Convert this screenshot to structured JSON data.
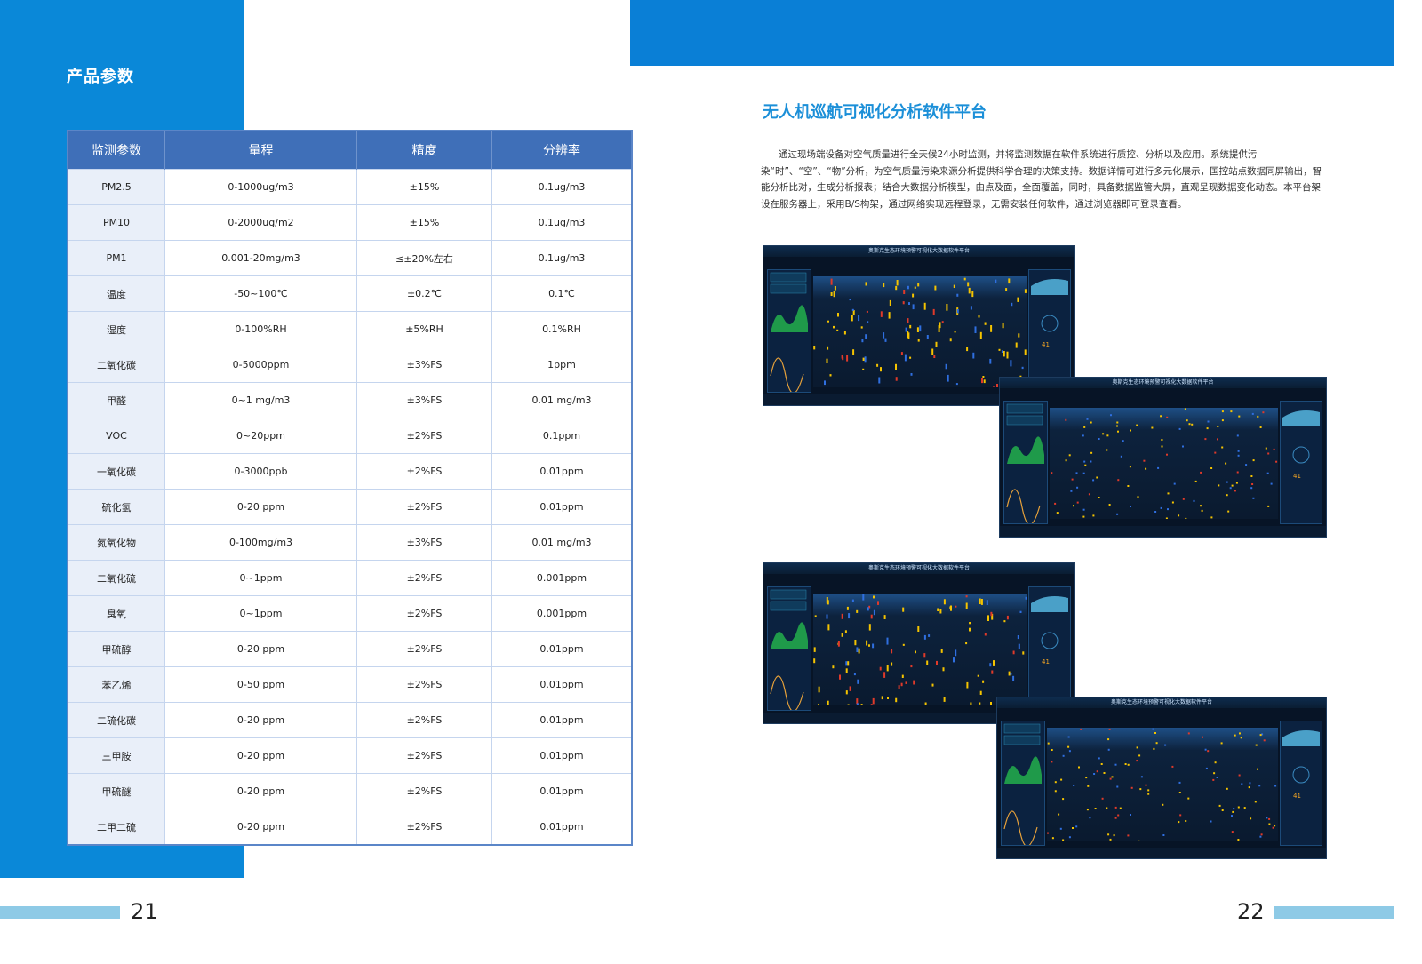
{
  "left_page": {
    "section_title": "产品参数",
    "table": {
      "headers": [
        "监测参数",
        "量程",
        "精度",
        "分辨率"
      ],
      "rows": [
        [
          "PM2.5",
          "0-1000ug/m3",
          "±15%",
          "0.1ug/m3"
        ],
        [
          "PM10",
          "0-2000ug/m2",
          "±15%",
          "0.1ug/m3"
        ],
        [
          "PM1",
          "0.001-20mg/m3",
          "≤±20%左右",
          "0.1ug/m3"
        ],
        [
          "温度",
          "-50~100℃",
          "±0.2℃",
          "0.1℃"
        ],
        [
          "湿度",
          "0-100%RH",
          "±5%RH",
          "0.1%RH"
        ],
        [
          "二氧化碳",
          "0-5000ppm",
          "±3%FS",
          "1ppm"
        ],
        [
          "甲醛",
          "0~1 mg/m3",
          "±3%FS",
          "0.01 mg/m3"
        ],
        [
          "VOC",
          "0~20ppm",
          "±2%FS",
          "0.1ppm"
        ],
        [
          "一氧化碳",
          "0-3000ppb",
          "±2%FS",
          "0.01ppm"
        ],
        [
          "硫化氢",
          "0-20 ppm",
          "±2%FS",
          "0.01ppm"
        ],
        [
          "氮氧化物",
          "0-100mg/m3",
          "±3%FS",
          "0.01 mg/m3"
        ],
        [
          "二氧化硫",
          "0~1ppm",
          "±2%FS",
          "0.001ppm"
        ],
        [
          "臭氧",
          "0~1ppm",
          "±2%FS",
          "0.001ppm"
        ],
        [
          "甲硫醇",
          "0-20 ppm",
          "±2%FS",
          "0.01ppm"
        ],
        [
          "苯乙烯",
          "0-50 ppm",
          "±2%FS",
          "0.01ppm"
        ],
        [
          "二硫化碳",
          "0-20 ppm",
          "±2%FS",
          "0.01ppm"
        ],
        [
          "三甲胺",
          "0-20 ppm",
          "±2%FS",
          "0.01ppm"
        ],
        [
          "甲硫醚",
          "0-20 ppm",
          "±2%FS",
          "0.01ppm"
        ],
        [
          "二甲二硫",
          "0-20 ppm",
          "±2%FS",
          "0.01ppm"
        ]
      ]
    },
    "page_number": "21"
  },
  "right_page": {
    "title": "无人机巡航可视化分析软件平台",
    "paragraph": "通过现场端设备对空气质量进行全天候24小时监测，并将监测数据在软件系统进行质控、分析以及应用。系统提供污染“时”、“空”、“物”分析，为空气质量污染来源分析提供科学合理的决策支持。数据详情可进行多元化展示，国控站点数据同屏输出，智能分析比对，生成分析报表；结合大数据分析模型，由点及面，全面覆盖，同时，具备数据监管大屏，直观呈现数据变化动态。本平台架设在服务器上，采用B/S构架，通过网络实现远程登录，无需安装任何软件，通过浏览器即可登录查看。",
    "screenshot_title": "奥斯克生态环境预警可视化大数据软件平台",
    "page_number": "22"
  },
  "colors": {
    "brand_blue": "#0a88d8",
    "table_header": "#3f6fb8",
    "title_blue": "#1b8fd8",
    "page_bar": "#8ecae6"
  }
}
